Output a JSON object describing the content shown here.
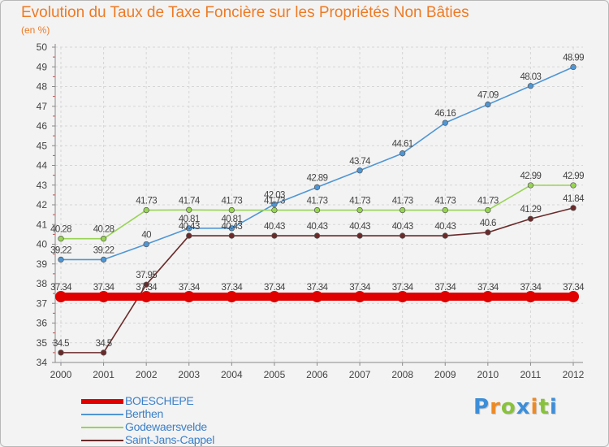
{
  "chart_data": {
    "type": "line",
    "title": "Evolution du Taux de Taxe Foncière sur les Propriétés Non Bâties",
    "subtitle": "(en %)",
    "xlabel": "",
    "ylabel": "(en %)",
    "ylim": [
      34,
      50
    ],
    "yticks": [
      "34",
      "35",
      "36",
      "37",
      "38",
      "39",
      "40",
      "41",
      "42",
      "43",
      "44",
      "45",
      "46",
      "47",
      "48",
      "49",
      "50"
    ],
    "categories": [
      "2000",
      "2001",
      "2002",
      "2003",
      "2004",
      "2005",
      "2006",
      "2007",
      "2008",
      "2009",
      "2010",
      "2011",
      "2012"
    ],
    "grid": true,
    "legend_position": "bottom-left",
    "series": [
      {
        "name": "BOESCHEPE",
        "color": "#e00000",
        "values": [
          37.34,
          37.34,
          37.34,
          37.34,
          37.34,
          37.34,
          37.34,
          37.34,
          37.34,
          37.34,
          37.34,
          37.34,
          37.34
        ],
        "labels": [
          "37.34",
          "37.34",
          "37.34",
          "37.34",
          "37.34",
          "37.34",
          "37.34",
          "37.34",
          "37.34",
          "37.34",
          "37.34",
          "37.34",
          "37.34"
        ]
      },
      {
        "name": "Berthen",
        "color": "#4f96d4",
        "values": [
          39.22,
          39.22,
          40,
          40.81,
          40.81,
          42.03,
          42.89,
          43.74,
          44.61,
          46.16,
          47.09,
          48.03,
          48.99
        ],
        "labels": [
          "39.22",
          "39.22",
          "40",
          "40.81",
          "40.81",
          "42.03",
          "42.89",
          "43.74",
          "44.61",
          "46.16",
          "47.09",
          "48.03",
          "48.99"
        ]
      },
      {
        "name": "Godewaersvelde",
        "color": "#98d454",
        "values": [
          40.28,
          40.28,
          41.73,
          41.74,
          41.73,
          41.73,
          41.73,
          41.73,
          41.73,
          41.73,
          41.73,
          42.99,
          42.99
        ],
        "labels": [
          "40.28",
          "40.28",
          "41.73",
          "41.74",
          "41.73",
          "41.73",
          "41.73",
          "41.73",
          "41.73",
          "41.73",
          "41.73",
          "42.99",
          "42.99"
        ]
      },
      {
        "name": "Saint-Jans-Cappel",
        "color": "#6b2a2a",
        "values": [
          34.5,
          34.5,
          37.95,
          40.43,
          40.43,
          40.43,
          40.43,
          40.43,
          40.43,
          40.43,
          40.6,
          41.29,
          41.84
        ],
        "labels": [
          "34.5",
          "34.5",
          "37.95",
          "40.43",
          "40.43",
          "40.43",
          "40.43",
          "40.43",
          "40.43",
          "40.43",
          "40.6",
          "41.29",
          "41.84"
        ]
      }
    ]
  },
  "logo": {
    "letters": [
      "P",
      "r",
      "o",
      "x",
      "i",
      "t",
      "i"
    ],
    "colors": [
      "#3c8ed8",
      "#ee8a24",
      "#88c23c",
      "#3c8ed8",
      "#ee8a24",
      "#88c23c",
      "#3c8ed8"
    ]
  }
}
